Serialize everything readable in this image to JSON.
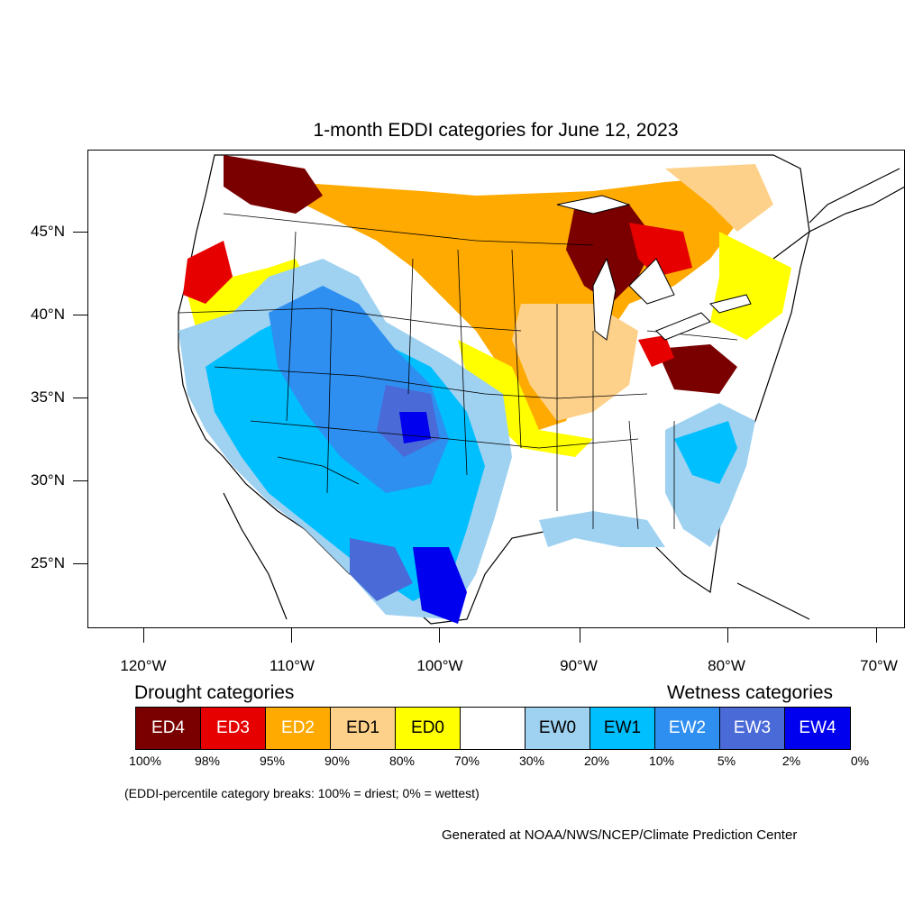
{
  "title": "1-month EDDI categories for June 12, 2023",
  "map": {
    "lat_labels": [
      "45°N",
      "40°N",
      "35°N",
      "30°N",
      "25°N"
    ],
    "lon_labels": [
      "120°W",
      "110°W",
      "100°W",
      "90°W",
      "80°W",
      "70°W"
    ],
    "palette": {
      "ED4": "#7a0000",
      "ED3": "#e60000",
      "ED2": "#ffaa00",
      "ED1": "#fed18b",
      "ED0": "#ffff00",
      "neutral": "#ffffff",
      "EW0": "#9fd1f1",
      "EW1": "#00bfff",
      "EW2": "#2e8ff0",
      "EW3": "#4a6ad8",
      "EW4": "#0000ee"
    }
  },
  "legend": {
    "drought_heading": "Drought categories",
    "wetness_heading": "Wetness categories",
    "categories": [
      {
        "label": "ED4",
        "color": "#7a0000",
        "text_color": "#ffffff"
      },
      {
        "label": "ED3",
        "color": "#e60000",
        "text_color": "#ffffff"
      },
      {
        "label": "ED2",
        "color": "#ffaa00",
        "text_color": "#ffffff"
      },
      {
        "label": "ED1",
        "color": "#fed18b",
        "text_color": "#000000"
      },
      {
        "label": "ED0",
        "color": "#ffff00",
        "text_color": "#000000"
      },
      {
        "label": "",
        "color": "#ffffff",
        "text_color": "#000000"
      },
      {
        "label": "EW0",
        "color": "#9fd1f1",
        "text_color": "#000000"
      },
      {
        "label": "EW1",
        "color": "#00bfff",
        "text_color": "#000000"
      },
      {
        "label": "EW2",
        "color": "#2e8ff0",
        "text_color": "#ffffff"
      },
      {
        "label": "EW3",
        "color": "#4a6ad8",
        "text_color": "#ffffff"
      },
      {
        "label": "EW4",
        "color": "#0000ee",
        "text_color": "#ffffff"
      }
    ],
    "percentiles": [
      "100%",
      "98%",
      "95%",
      "90%",
      "80%",
      "70%",
      "30%",
      "20%",
      "10%",
      "5%",
      "2%",
      "0%"
    ],
    "note": "(EDDI-percentile category breaks: 100% = driest; 0% = wettest)"
  },
  "credit": "Generated at NOAA/NWS/NCEP/Climate Prediction Center"
}
